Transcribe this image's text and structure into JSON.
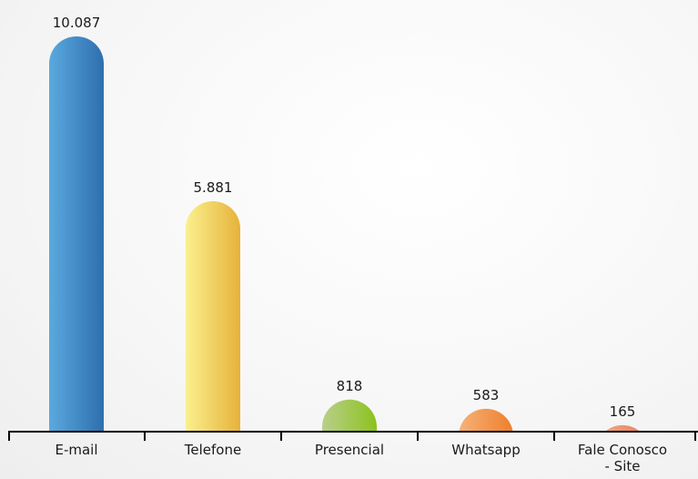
{
  "chart_data": {
    "type": "bar",
    "categories": [
      "E-mail",
      "Telefone",
      "Presencial",
      "Whatsapp",
      "Fale Conosco - Site"
    ],
    "category_lines": [
      [
        "E-mail"
      ],
      [
        "Telefone"
      ],
      [
        "Presencial"
      ],
      [
        "Whatsapp"
      ],
      [
        "Fale Conosco",
        "- Site"
      ]
    ],
    "values": [
      10087,
      5881,
      818,
      583,
      165
    ],
    "value_labels": [
      "10.087",
      "5.881",
      "818",
      "583",
      "165"
    ],
    "ylim": [
      0,
      10087
    ],
    "grid": false,
    "legend": "none",
    "colors": [
      [
        "#5aa9df",
        "#2e6fae"
      ],
      [
        "#fbf08e",
        "#e6b23a"
      ],
      [
        "#b9cf8a",
        "#8cc21e"
      ],
      [
        "#f6b278",
        "#ee7f2c"
      ],
      [
        "#f0a586",
        "#e88460"
      ]
    ]
  }
}
